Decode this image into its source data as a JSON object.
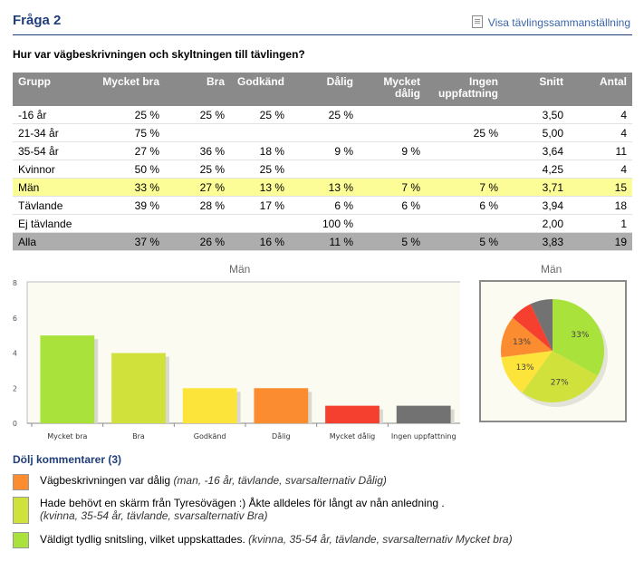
{
  "header": {
    "title": "Fråga 2",
    "link_label": "Visa tävlingssammanställning"
  },
  "question": "Hur var vägbeskrivningen och skyltningen till tävlingen?",
  "table": {
    "columns": [
      "Grupp",
      "Mycket bra",
      "Bra",
      "Godkänd",
      "Dålig",
      "Mycket dålig",
      "Ingen uppfattning",
      "Snitt",
      "Antal"
    ],
    "rows": [
      [
        "-16 år",
        "25 %",
        "25 %",
        "25 %",
        "25 %",
        "",
        "",
        "3,50",
        "4"
      ],
      [
        "21-34 år",
        "75 %",
        "",
        "",
        "",
        "",
        "25 %",
        "5,00",
        "4"
      ],
      [
        "35-54 år",
        "27 %",
        "36 %",
        "18 %",
        "9 %",
        "9 %",
        "",
        "3,64",
        "11"
      ],
      [
        "Kvinnor",
        "50 %",
        "25 %",
        "25 %",
        "",
        "",
        "",
        "4,25",
        "4"
      ],
      [
        "Män",
        "33 %",
        "27 %",
        "13 %",
        "13 %",
        "7 %",
        "7 %",
        "3,71",
        "15"
      ],
      [
        "Tävlande",
        "39 %",
        "28 %",
        "17 %",
        "6 %",
        "6 %",
        "6 %",
        "3,94",
        "18"
      ],
      [
        "Ej tävlande",
        "",
        "",
        "",
        "100 %",
        "",
        "",
        "2,00",
        "1"
      ],
      [
        "Alla",
        "37 %",
        "26 %",
        "16 %",
        "11 %",
        "5 %",
        "5 %",
        "3,83",
        "19"
      ]
    ],
    "highlight_row": 4,
    "total_row": 7
  },
  "chart_data": [
    {
      "type": "bar",
      "title": "Män",
      "categories": [
        "Mycket bra",
        "Bra",
        "Godkänd",
        "Dålig",
        "Mycket dålig",
        "Ingen uppfattning"
      ],
      "values": [
        5,
        4,
        2,
        2,
        1,
        1
      ],
      "colors": [
        "#a9e23a",
        "#cfe13a",
        "#fde43a",
        "#fb8c30",
        "#f6402f",
        "#727272"
      ],
      "ylim": [
        0,
        8
      ],
      "yticks": [
        0,
        2,
        4,
        6,
        8
      ],
      "grid": false
    },
    {
      "type": "pie",
      "title": "Män",
      "slices": [
        {
          "category": "Mycket bra",
          "value": 33,
          "label": "33%",
          "color": "#a9e23a"
        },
        {
          "category": "Bra",
          "value": 27,
          "label": "27%",
          "color": "#cfe13a"
        },
        {
          "category": "Godkänd",
          "value": 13,
          "label": "13%",
          "color": "#fde43a"
        },
        {
          "category": "Dålig",
          "value": 13,
          "label": "13%",
          "color": "#fb8c30"
        },
        {
          "category": "Mycket dålig",
          "value": 7,
          "label": "",
          "color": "#f6402f"
        },
        {
          "category": "Ingen uppfattning",
          "value": 7,
          "label": "",
          "color": "#727272"
        }
      ]
    }
  ],
  "comments": {
    "toggle_label": "Dölj kommentarer (3)",
    "items": [
      {
        "color": "#fb8c30",
        "text": "Vägbeskrivningen var dålig",
        "meta": "(man, -16 år, tävlande, svarsalternativ Dålig)"
      },
      {
        "color": "#cfe13a",
        "text": "Hade behövt en skärm från Tyresövägen :) Åkte alldeles för långt av nån anledning .",
        "meta": "(kvinna, 35-54 år, tävlande, svarsalternativ Bra)"
      },
      {
        "color": "#a9e23a",
        "text": "Väldigt tydlig snitsling, vilket uppskattades.",
        "meta": "(kvinna, 35-54 år, tävlande, svarsalternativ Mycket bra)"
      }
    ]
  }
}
